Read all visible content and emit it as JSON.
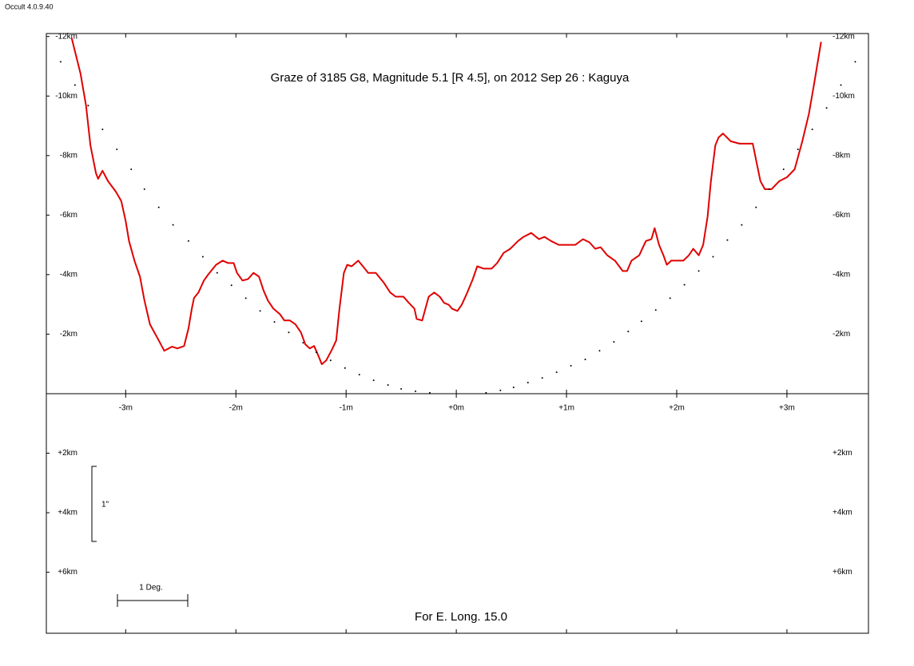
{
  "app_label": "Occult 4.0.9.40",
  "chart_data": {
    "type": "line",
    "title": "Graze of  3185 G8,  Magnitude 5.1 [R 4.5],  on 2012 Sep 26  :  Kaguya",
    "footer": "For E. Long. 15.0",
    "scale_vertical_label": "1\"",
    "scale_horizontal_label": "1 Deg.",
    "xlim": [
      -3.72,
      3.74
    ],
    "ylim": [
      -12.1,
      8.05
    ],
    "y_inverted": true,
    "xticks": [
      {
        "value": -3,
        "label": "-3m"
      },
      {
        "value": -2,
        "label": "-2m"
      },
      {
        "value": -1,
        "label": "-1m"
      },
      {
        "value": 0,
        "label": "+0m"
      },
      {
        "value": 1,
        "label": "+1m"
      },
      {
        "value": 2,
        "label": "+2m"
      },
      {
        "value": 3,
        "label": "+3m"
      }
    ],
    "yticks": [
      {
        "value": -12,
        "label": "-12km"
      },
      {
        "value": -10,
        "label": "-10km"
      },
      {
        "value": -8,
        "label": "-8km"
      },
      {
        "value": -6,
        "label": "-6km"
      },
      {
        "value": -4,
        "label": "-4km"
      },
      {
        "value": -2,
        "label": "-2km"
      },
      {
        "value": 2,
        "label": "+2km"
      },
      {
        "value": 4,
        "label": "+4km"
      },
      {
        "value": 6,
        "label": "+6km"
      }
    ],
    "series": [
      {
        "color": "#e00000",
        "style": "line",
        "x": [
          -3.49,
          -3.41,
          -3.36,
          -3.32,
          -3.27,
          -3.25,
          -3.21,
          -3.16,
          -3.09,
          -3.04,
          -3.0,
          -2.97,
          -2.92,
          -2.87,
          -2.83,
          -2.78,
          -2.7,
          -2.65,
          -2.58,
          -2.53,
          -2.47,
          -2.43,
          -2.4,
          -2.38,
          -2.34,
          -2.29,
          -2.25,
          -2.18,
          -2.12,
          -2.07,
          -2.02,
          -1.99,
          -1.94,
          -1.89,
          -1.84,
          -1.79,
          -1.75,
          -1.71,
          -1.66,
          -1.6,
          -1.56,
          -1.51,
          -1.46,
          -1.41,
          -1.37,
          -1.33,
          -1.29,
          -1.25,
          -1.22,
          -1.18,
          -1.13,
          -1.09,
          -1.06,
          -1.02,
          -0.99,
          -0.95,
          -0.89,
          -0.83,
          -0.8,
          -0.73,
          -0.66,
          -0.6,
          -0.55,
          -0.48,
          -0.43,
          -0.38,
          -0.36,
          -0.31,
          -0.28,
          -0.25,
          -0.2,
          -0.15,
          -0.11,
          -0.07,
          -0.04,
          0.01,
          0.05,
          0.1,
          0.15,
          0.19,
          0.25,
          0.32,
          0.37,
          0.43,
          0.49,
          0.56,
          0.61,
          0.68,
          0.75,
          0.8,
          0.86,
          0.93,
          1.01,
          1.08,
          1.15,
          1.21,
          1.26,
          1.31,
          1.37,
          1.44,
          1.51,
          1.55,
          1.59,
          1.66,
          1.72,
          1.77,
          1.8,
          1.84,
          1.88,
          1.91,
          1.95,
          2.06,
          2.11,
          2.15,
          2.2,
          2.24,
          2.28,
          2.31,
          2.35,
          2.38,
          2.42,
          2.49,
          2.57,
          2.64,
          2.69,
          2.73,
          2.76,
          2.8,
          2.86,
          2.93,
          3.0,
          3.07,
          3.14,
          3.2,
          3.25,
          3.31
        ],
        "values": [
          -11.95,
          -10.75,
          -9.68,
          -8.34,
          -7.41,
          -7.22,
          -7.49,
          -7.14,
          -6.79,
          -6.47,
          -5.8,
          -5.13,
          -4.47,
          -3.93,
          -3.13,
          -2.33,
          -1.79,
          -1.44,
          -1.58,
          -1.52,
          -1.6,
          -2.19,
          -2.86,
          -3.21,
          -3.4,
          -3.8,
          -4.01,
          -4.33,
          -4.47,
          -4.39,
          -4.39,
          -4.06,
          -3.8,
          -3.85,
          -4.06,
          -3.93,
          -3.48,
          -3.13,
          -2.86,
          -2.67,
          -2.46,
          -2.46,
          -2.33,
          -2.06,
          -1.66,
          -1.52,
          -1.6,
          -1.26,
          -0.99,
          -1.12,
          -1.47,
          -1.79,
          -2.86,
          -4.06,
          -4.33,
          -4.28,
          -4.47,
          -4.2,
          -4.06,
          -4.06,
          -3.74,
          -3.4,
          -3.26,
          -3.26,
          -3.05,
          -2.86,
          -2.51,
          -2.46,
          -2.86,
          -3.26,
          -3.4,
          -3.26,
          -3.05,
          -2.99,
          -2.86,
          -2.78,
          -2.99,
          -3.4,
          -3.85,
          -4.28,
          -4.2,
          -4.2,
          -4.39,
          -4.73,
          -4.87,
          -5.13,
          -5.27,
          -5.4,
          -5.19,
          -5.27,
          -5.13,
          -5.0,
          -5.0,
          -5.0,
          -5.19,
          -5.08,
          -4.87,
          -4.92,
          -4.65,
          -4.47,
          -4.12,
          -4.12,
          -4.47,
          -4.65,
          -5.13,
          -5.19,
          -5.56,
          -5.0,
          -4.65,
          -4.33,
          -4.47,
          -4.47,
          -4.65,
          -4.87,
          -4.65,
          -5.0,
          -5.94,
          -7.14,
          -8.34,
          -8.61,
          -8.74,
          -8.48,
          -8.4,
          -8.4,
          -8.4,
          -7.67,
          -7.14,
          -6.87,
          -6.87,
          -7.14,
          -7.27,
          -7.54,
          -8.48,
          -9.41,
          -10.48,
          -11.82
        ]
      },
      {
        "color": "#000000",
        "style": "dots",
        "x": [
          -3.59,
          -3.46,
          -3.34,
          -3.21,
          -3.08,
          -2.95,
          -2.83,
          -2.7,
          -2.57,
          -2.43,
          -2.3,
          -2.17,
          -2.04,
          -1.91,
          -1.78,
          -1.65,
          -1.52,
          -1.39,
          -1.27,
          -1.14,
          -1.01,
          -0.88,
          -0.75,
          -0.62,
          -0.5,
          -0.37,
          -0.24,
          0.27,
          0.4,
          0.52,
          0.65,
          0.78,
          0.91,
          1.04,
          1.17,
          1.3,
          1.43,
          1.56,
          1.68,
          1.81,
          1.94,
          2.07,
          2.2,
          2.33,
          2.46,
          2.59,
          2.72,
          2.84,
          2.97,
          3.1,
          3.23,
          3.36,
          3.49,
          3.62
        ],
        "values": [
          -11.15,
          -10.37,
          -9.68,
          -8.88,
          -8.21,
          -7.54,
          -6.87,
          -6.26,
          -5.67,
          -5.13,
          -4.6,
          -4.06,
          -3.64,
          -3.21,
          -2.78,
          -2.41,
          -2.06,
          -1.71,
          -1.39,
          -1.12,
          -0.86,
          -0.64,
          -0.45,
          -0.29,
          -0.16,
          -0.08,
          -0.03,
          -0.03,
          -0.11,
          -0.21,
          -0.37,
          -0.53,
          -0.72,
          -0.94,
          -1.15,
          -1.44,
          -1.74,
          -2.09,
          -2.43,
          -2.81,
          -3.21,
          -3.66,
          -4.12,
          -4.6,
          -5.16,
          -5.67,
          -6.26,
          -6.87,
          -7.54,
          -8.21,
          -8.88,
          -9.6,
          -10.37,
          -11.15
        ]
      }
    ]
  }
}
